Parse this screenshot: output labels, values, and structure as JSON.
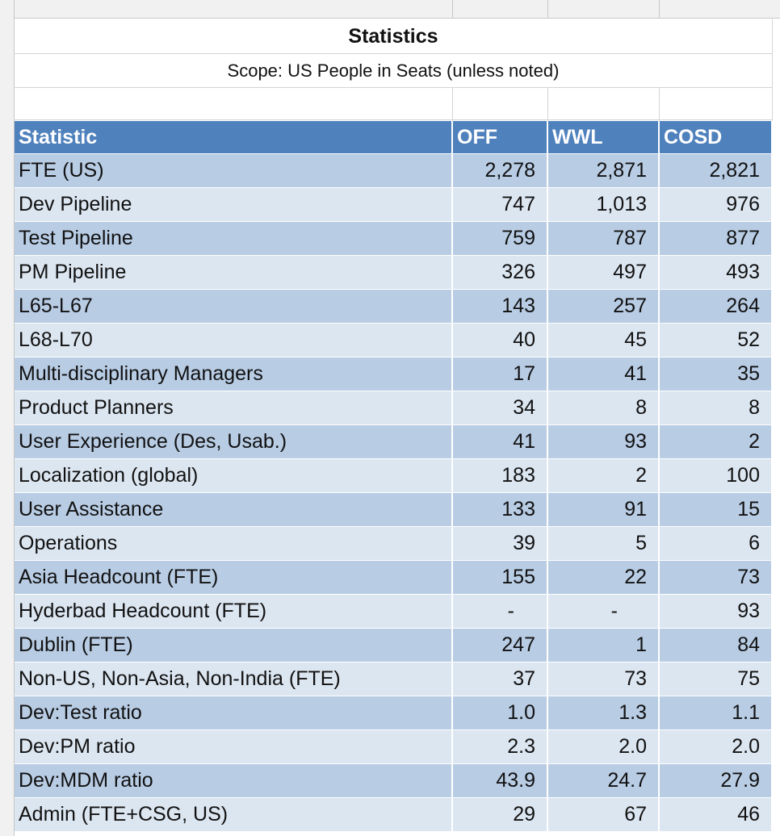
{
  "sheet": {
    "title": "Statistics",
    "subtitle": "Scope: US People in Seats (unless noted)",
    "header_fill": "#4f81bd",
    "band_dark": "#b8cce4",
    "band_light": "#dce6f1"
  },
  "table": {
    "headers": [
      "Statistic",
      "OFF",
      "WWL",
      "COSD"
    ],
    "rows": [
      [
        "FTE (US)",
        "2,278",
        "2,871",
        "2,821"
      ],
      [
        "Dev Pipeline",
        "747",
        "1,013",
        "976"
      ],
      [
        "Test Pipeline",
        "759",
        "787",
        "877"
      ],
      [
        "PM Pipeline",
        "326",
        "497",
        "493"
      ],
      [
        "L65-L67",
        "143",
        "257",
        "264"
      ],
      [
        "L68-L70",
        "40",
        "45",
        "52"
      ],
      [
        "Multi-disciplinary Managers",
        "17",
        "41",
        "35"
      ],
      [
        "Product Planners",
        "34",
        "8",
        "8"
      ],
      [
        "User Experience (Des, Usab.)",
        "41",
        "93",
        "2"
      ],
      [
        "Localization (global)",
        "183",
        "2",
        "100"
      ],
      [
        "User Assistance",
        "133",
        "91",
        "15"
      ],
      [
        "Operations",
        "39",
        "5",
        "6"
      ],
      [
        "Asia Headcount (FTE)",
        "155",
        "22",
        "73"
      ],
      [
        "Hyderbad Headcount (FTE)",
        "-",
        "-",
        "93"
      ],
      [
        "Dublin (FTE)",
        "247",
        "1",
        "84"
      ],
      [
        "Non-US, Non-Asia, Non-India (FTE)",
        "37",
        "73",
        "75"
      ],
      [
        "Dev:Test ratio",
        "1.0",
        "1.3",
        "1.1"
      ],
      [
        "Dev:PM ratio",
        "2.3",
        "2.0",
        "2.0"
      ],
      [
        "Dev:MDM ratio",
        "43.9",
        "24.7",
        "27.9"
      ],
      [
        "Admin (FTE+CSG, US)",
        "29",
        "67",
        "46"
      ]
    ]
  }
}
